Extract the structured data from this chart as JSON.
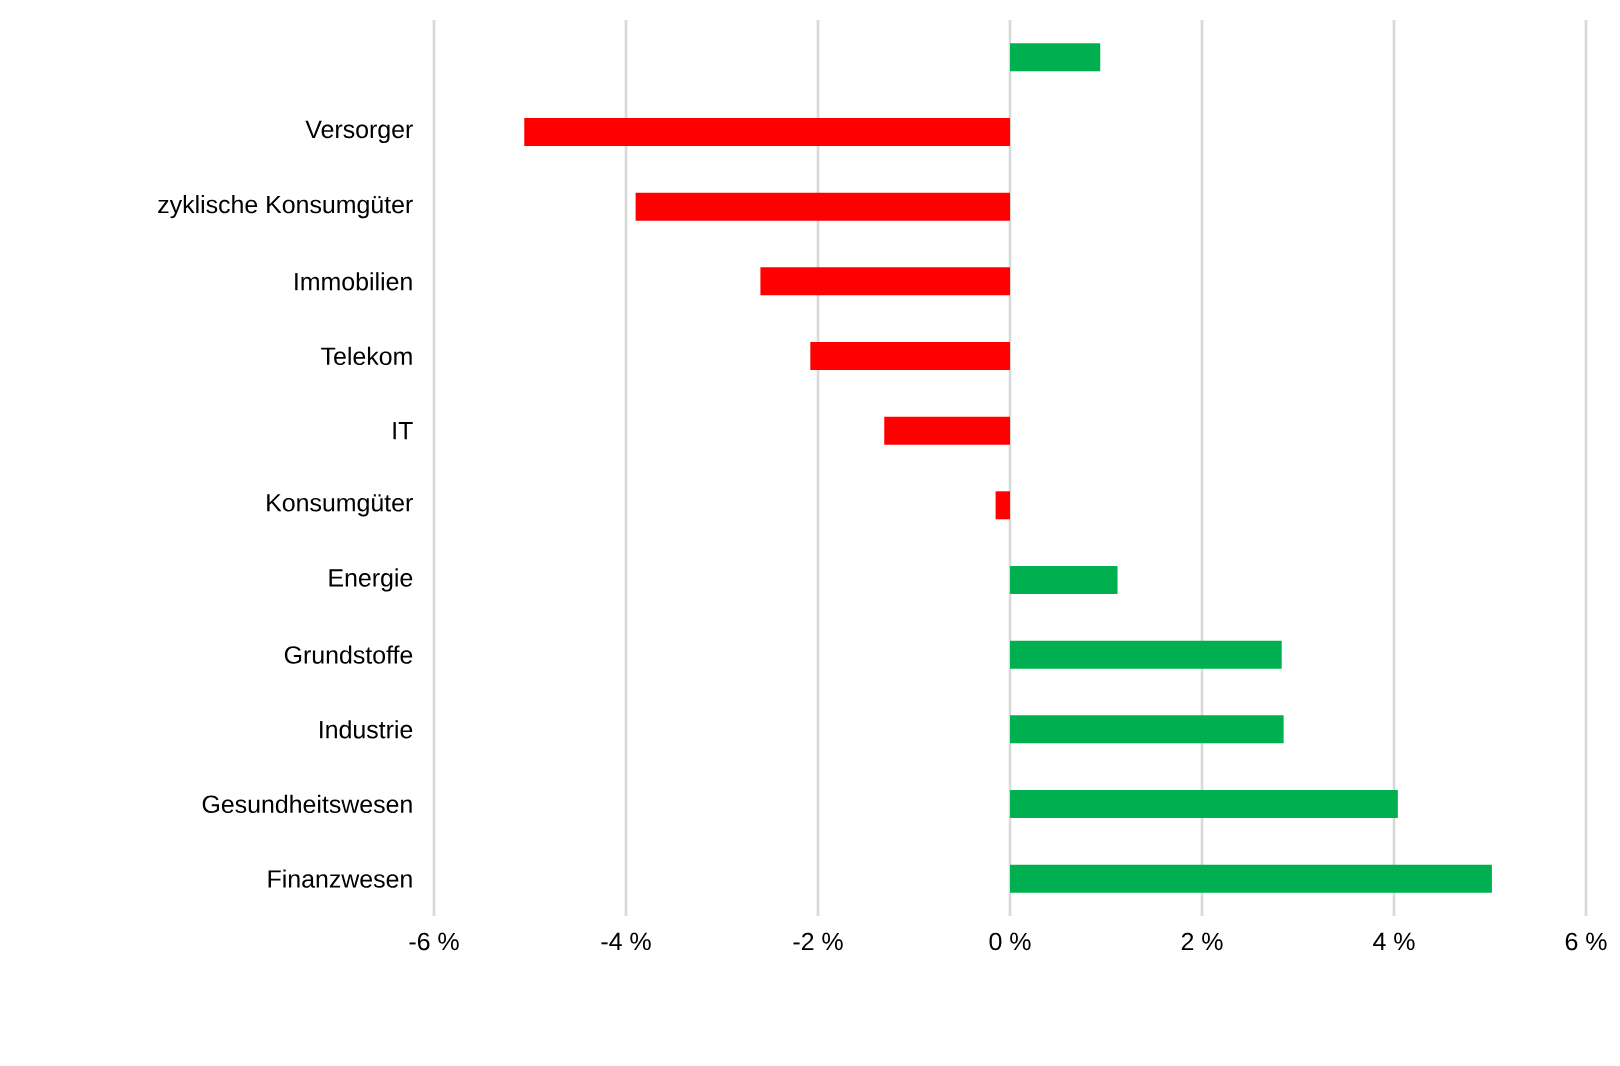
{
  "chart_data": {
    "type": "bar",
    "orientation": "horizontal",
    "categories": [
      null,
      "Versorger",
      "zyklische Konsumgüter",
      "Immobilien",
      "Telekom",
      "IT",
      "Konsumgüter",
      "Energie",
      "Grundstoffe",
      "Industrie",
      "Gesundheitswesen",
      "Finanzwesen"
    ],
    "values": [
      0.94,
      -5.06,
      -3.9,
      -2.6,
      -2.08,
      -1.31,
      -0.15,
      1.12,
      2.83,
      2.85,
      4.04,
      5.02
    ],
    "colors": [
      "#00b050",
      "#ff0000",
      "#ff0000",
      "#ff0000",
      "#ff0000",
      "#ff0000",
      "#ff0000",
      "#00b050",
      "#00b050",
      "#00b050",
      "#00b050",
      "#00b050"
    ],
    "xlim": [
      -6,
      6
    ],
    "xticks": [
      {
        "value": -6,
        "label": "-6 %"
      },
      {
        "value": -4,
        "label": "-4 %"
      },
      {
        "value": -2,
        "label": "-2 %"
      },
      {
        "value": 0,
        "label": "0 %"
      },
      {
        "value": 2,
        "label": "2 %"
      },
      {
        "value": 4,
        "label": "4 %"
      },
      {
        "value": 6,
        "label": "6 %"
      }
    ],
    "grid": "x"
  }
}
